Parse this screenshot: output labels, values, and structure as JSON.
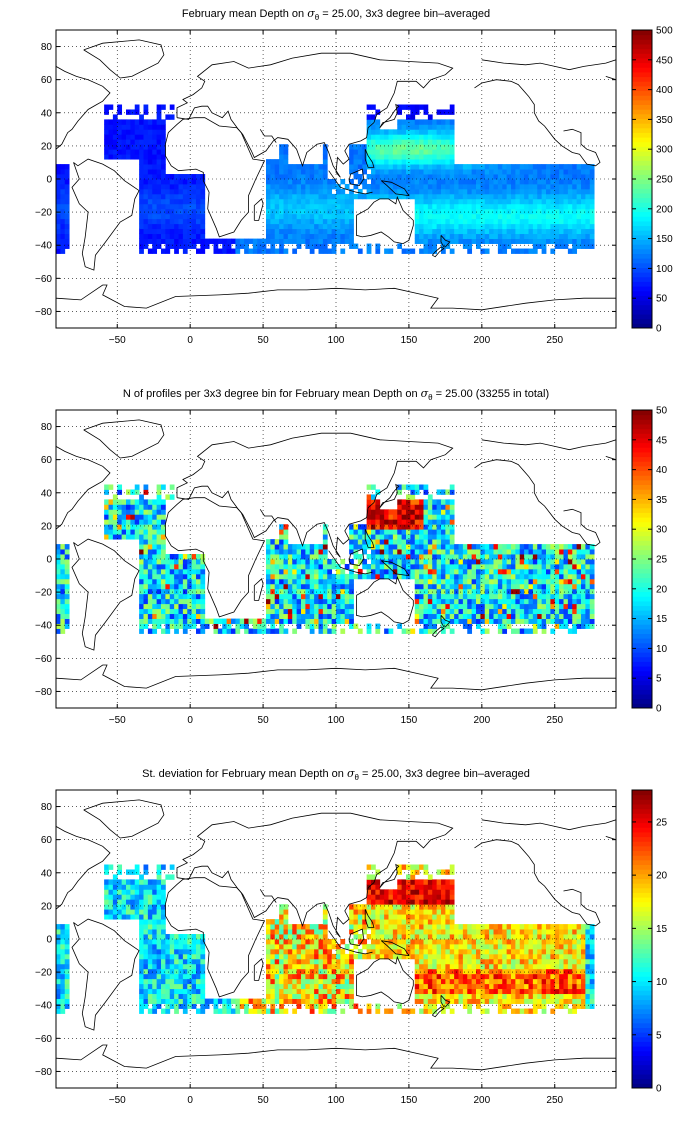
{
  "chart_data": [
    {
      "type": "heatmap",
      "title": "February mean Depth on σθ = 25.00, 3x3 degree bin–averaged",
      "title_parts": {
        "before": "February mean Depth on ",
        "symbol": "σ",
        "subscript": "θ",
        "after": " = 25.00, 3x3 degree bin–averaged"
      },
      "xlabel": "",
      "ylabel": "",
      "xlim": [
        -92,
        292
      ],
      "ylim": [
        -90,
        90
      ],
      "xticks": [
        -50,
        0,
        50,
        100,
        150,
        200,
        250
      ],
      "yticks": [
        -80,
        -60,
        -40,
        -20,
        0,
        20,
        40,
        60,
        80
      ],
      "grid": true,
      "colormap": "jet",
      "clim": [
        0,
        500
      ],
      "colorbar_ticks": [
        0,
        50,
        100,
        150,
        200,
        250,
        300,
        350,
        400,
        450,
        500
      ],
      "field": "mean_depth",
      "summary": {
        "western_pacific_max": 260,
        "atlantic_typical": 80,
        "indian_typical": 150,
        "south_pacific": 190
      }
    },
    {
      "type": "heatmap",
      "title": "N of profiles per 3x3 degree bin for February mean Depth on σθ = 25.00 (33255 in total)",
      "title_parts": {
        "before": "N of profiles per 3x3 degree bin for February mean Depth on ",
        "symbol": "σ",
        "subscript": "θ",
        "after": " = 25.00 (33255 in total)"
      },
      "xlabel": "",
      "ylabel": "",
      "xlim": [
        -92,
        292
      ],
      "ylim": [
        -90,
        90
      ],
      "xticks": [
        -50,
        0,
        50,
        100,
        150,
        200,
        250
      ],
      "yticks": [
        -80,
        -60,
        -40,
        -20,
        0,
        20,
        40,
        60,
        80
      ],
      "grid": true,
      "colormap": "jet",
      "clim": [
        0,
        50
      ],
      "colorbar_ticks": [
        0,
        5,
        10,
        15,
        20,
        25,
        30,
        35,
        40,
        45,
        50
      ],
      "field": "profile_count",
      "total_profiles": 33255,
      "summary": {
        "typical": 15,
        "kuroshio_max": 50
      }
    },
    {
      "type": "heatmap",
      "title": "St. deviation for February mean Depth on σθ = 25.00, 3x3 degree bin–averaged",
      "title_parts": {
        "before": "St. deviation for February mean Depth on ",
        "symbol": "σ",
        "subscript": "θ",
        "after": " = 25.00, 3x3 degree bin–averaged"
      },
      "xlabel": "",
      "ylabel": "",
      "xlim": [
        -92,
        292
      ],
      "ylim": [
        -90,
        90
      ],
      "xticks": [
        -50,
        0,
        50,
        100,
        150,
        200,
        250
      ],
      "yticks": [
        -80,
        -60,
        -40,
        -20,
        0,
        20,
        40,
        60,
        80
      ],
      "grid": true,
      "colormap": "jet",
      "clim": [
        0,
        28
      ],
      "colorbar_ticks": [
        0,
        5,
        10,
        15,
        20,
        25
      ],
      "field": "std_depth",
      "summary": {
        "atlantic_typical": 10,
        "indian_typical": 16,
        "north_pacific_max": 27
      }
    }
  ]
}
